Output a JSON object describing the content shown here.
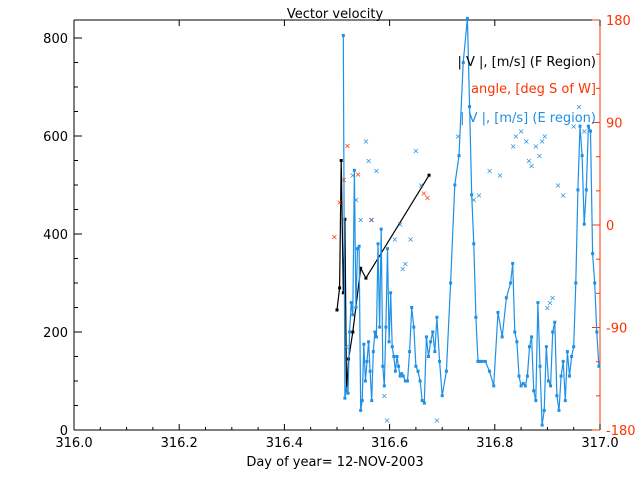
{
  "chart_data": {
    "type": "line",
    "title": "Vector velocity",
    "xlabel": "Day of year= 12-NOV-2003",
    "xlim": [
      316.0,
      317.0
    ],
    "xticks": [
      316.0,
      316.2,
      316.4,
      316.6,
      316.8,
      317.0
    ],
    "xtick_labels": [
      "316.0",
      "316.2",
      "316.4",
      "316.6",
      "316.8",
      "317.0"
    ],
    "y_left": {
      "lim": [
        0,
        850
      ],
      "ticks": [
        0,
        200,
        400,
        600,
        800
      ],
      "tick_labels": [
        "0",
        "200",
        "400",
        "600",
        "800"
      ]
    },
    "y_right": {
      "lim": [
        -180,
        180
      ],
      "ticks": [
        -180,
        -90,
        0,
        90,
        180
      ],
      "tick_labels": [
        "-180",
        "-90",
        "0",
        "90",
        "180"
      ],
      "color": "#ff3300"
    },
    "legend": [
      {
        "label": "| V |, [m/s] (F Region)",
        "color": "#000000"
      },
      {
        "label": "angle, [deg S of W]",
        "color": "#ff3300"
      },
      {
        "label": "| V |, [m/s] (E region)",
        "color": "#1e90e6"
      }
    ],
    "series": [
      {
        "name": "| V |, [m/s] (F Region)",
        "axis": "left",
        "style": "line-marker",
        "color": "#000000",
        "x": [
          316.5,
          316.505,
          316.508,
          316.512,
          316.515,
          316.518,
          316.522,
          316.53,
          316.545,
          316.555,
          316.675
        ],
        "y": [
          245,
          290,
          550,
          280,
          430,
          80,
          145,
          200,
          330,
          310,
          520
        ]
      },
      {
        "name": "angle, [deg S of W]",
        "axis": "right",
        "style": "marker",
        "color": "#ff3300",
        "x": [
          316.495,
          316.505,
          316.513,
          316.52,
          316.54,
          316.565,
          316.665,
          316.672
        ],
        "y": [
          -10,
          20,
          40,
          70,
          45,
          5,
          28,
          24
        ]
      },
      {
        "name": "| V |, [m/s] (E region)",
        "axis": "left",
        "style": "line-marker",
        "color": "#1e90e6",
        "x": [
          316.512,
          316.515,
          316.518,
          316.521,
          316.524,
          316.527,
          316.53,
          316.533,
          316.536,
          316.539,
          316.542,
          316.545,
          316.548,
          316.551,
          316.554,
          316.557,
          316.56,
          316.563,
          316.566,
          316.569,
          316.572,
          316.575,
          316.578,
          316.581,
          316.584,
          316.587,
          316.59,
          316.593,
          316.596,
          316.599,
          316.602,
          316.605,
          316.608,
          316.611,
          316.614,
          316.617,
          316.62,
          316.623,
          316.626,
          316.63,
          316.634,
          316.638,
          316.642,
          316.646,
          316.65,
          316.654,
          316.658,
          316.662,
          316.666,
          316.67,
          316.674,
          316.678,
          316.682,
          316.686,
          316.69,
          316.695,
          316.7,
          316.708,
          316.716,
          316.724,
          316.732,
          316.74,
          316.748,
          316.752,
          316.756,
          316.76,
          316.764,
          316.768,
          316.772,
          316.776,
          316.782,
          316.79,
          316.798,
          316.806,
          316.814,
          316.822,
          316.83,
          316.834,
          316.838,
          316.842,
          316.846,
          316.85,
          316.854,
          316.858,
          316.862,
          316.866,
          316.87,
          316.874,
          316.878,
          316.882,
          316.886,
          316.89,
          316.894,
          316.898,
          316.902,
          316.906,
          316.91,
          316.914,
          316.918,
          316.922,
          316.926,
          316.93,
          316.934,
          316.938,
          316.942,
          316.946,
          316.95,
          316.954,
          316.958,
          316.962,
          316.966,
          316.97,
          316.974,
          316.978,
          316.982,
          316.986,
          316.99,
          316.994,
          316.998
        ],
        "y": [
          805,
          65,
          85,
          75,
          200,
          260,
          235,
          530,
          250,
          370,
          375,
          40,
          60,
          175,
          100,
          140,
          180,
          120,
          60,
          160,
          200,
          190,
          380,
          210,
          410,
          130,
          90,
          210,
          370,
          180,
          280,
          170,
          150,
          120,
          150,
          130,
          110,
          115,
          110,
          100,
          100,
          160,
          250,
          210,
          130,
          120,
          100,
          60,
          55,
          190,
          150,
          180,
          200,
          160,
          230,
          140,
          70,
          120,
          300,
          500,
          560,
          750,
          840,
          660,
          480,
          380,
          230,
          140,
          140,
          140,
          140,
          120,
          90,
          240,
          190,
          270,
          300,
          340,
          200,
          180,
          110,
          90,
          95,
          90,
          110,
          170,
          190,
          80,
          60,
          260,
          130,
          10,
          40,
          170,
          100,
          90,
          200,
          220,
          70,
          40,
          110,
          140,
          60,
          160,
          110,
          150,
          170,
          300,
          490,
          620,
          560,
          420,
          490,
          620,
          610,
          360,
          300,
          200,
          130
        ]
      },
      {
        "name": "| V |, [m/s] (E region) x-markers",
        "axis": "left",
        "style": "cross",
        "color": "#1e90e6",
        "x": [
          316.518,
          316.53,
          316.536,
          316.545,
          316.555,
          316.56,
          316.566,
          316.575,
          316.59,
          316.595,
          316.61,
          316.62,
          316.625,
          316.63,
          316.64,
          316.65,
          316.66,
          316.69,
          316.73,
          316.76,
          316.77,
          316.79,
          316.81,
          316.835,
          316.84,
          316.85,
          316.86,
          316.865,
          316.87,
          316.878,
          316.885,
          316.89,
          316.895,
          316.9,
          316.905,
          316.91,
          316.92,
          316.93,
          316.95,
          316.96,
          316.97
        ],
        "y": [
          170,
          520,
          470,
          430,
          590,
          550,
          430,
          530,
          70,
          20,
          390,
          420,
          330,
          340,
          390,
          570,
          500,
          20,
          600,
          470,
          480,
          530,
          520,
          580,
          600,
          610,
          590,
          550,
          540,
          580,
          560,
          590,
          600,
          250,
          260,
          270,
          500,
          480,
          620,
          660,
          610
        ]
      }
    ]
  }
}
